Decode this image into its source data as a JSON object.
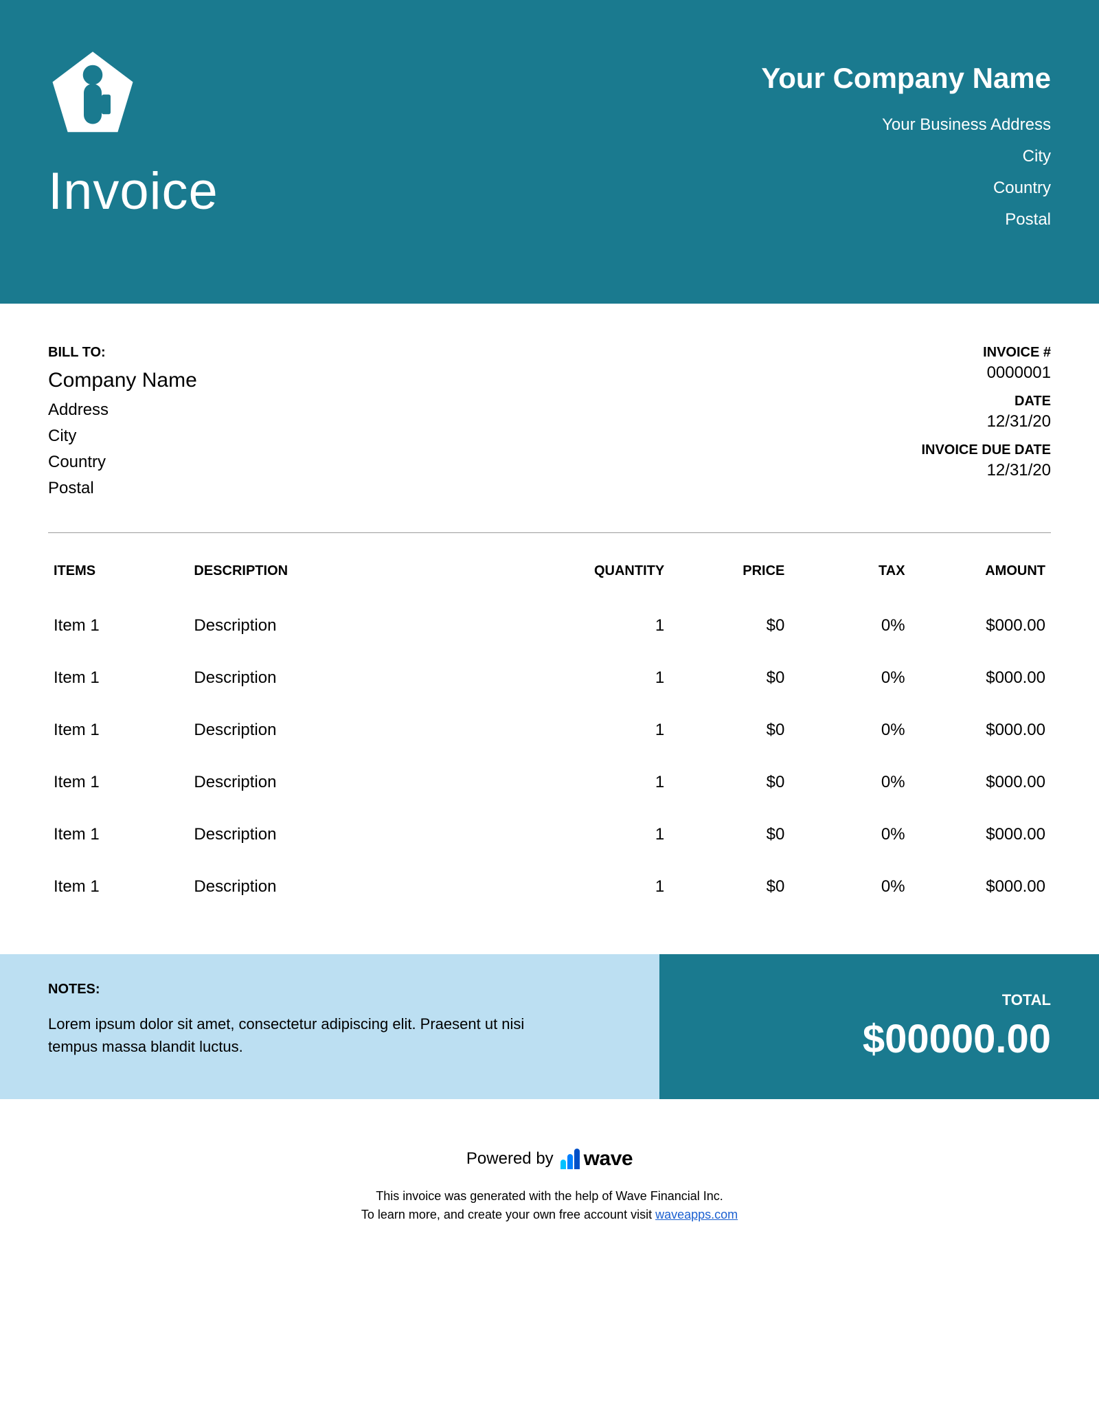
{
  "colors": {
    "brand": "#1a7a8f",
    "notes_bg": "#bcdff2",
    "rule": "#9a9a9a",
    "white": "#ffffff",
    "link": "#1a5fd0"
  },
  "header": {
    "title": "Invoice",
    "company_name": "Your Company Name",
    "address_lines": [
      "Your Business Address",
      "City",
      "Country",
      "Postal"
    ]
  },
  "bill_to": {
    "label": "BILL TO:",
    "company": "Company Name",
    "lines": [
      "Address",
      "City",
      "Country",
      "Postal"
    ]
  },
  "invoice_meta": {
    "number_label": "INVOICE #",
    "number": "0000001",
    "date_label": "DATE",
    "date": "12/31/20",
    "due_label": "INVOICE DUE DATE",
    "due": "12/31/20"
  },
  "table": {
    "columns": [
      "ITEMS",
      "DESCRIPTION",
      "QUANTITY",
      "PRICE",
      "TAX",
      "AMOUNT"
    ],
    "rows": [
      {
        "item": "Item 1",
        "desc": "Description",
        "qty": "1",
        "price": "$0",
        "tax": "0%",
        "amount": "$000.00"
      },
      {
        "item": "Item 1",
        "desc": "Description",
        "qty": "1",
        "price": "$0",
        "tax": "0%",
        "amount": "$000.00"
      },
      {
        "item": "Item 1",
        "desc": "Description",
        "qty": "1",
        "price": "$0",
        "tax": "0%",
        "amount": "$000.00"
      },
      {
        "item": "Item 1",
        "desc": "Description",
        "qty": "1",
        "price": "$0",
        "tax": "0%",
        "amount": "$000.00"
      },
      {
        "item": "Item 1",
        "desc": "Description",
        "qty": "1",
        "price": "$0",
        "tax": "0%",
        "amount": "$000.00"
      },
      {
        "item": "Item 1",
        "desc": "Description",
        "qty": "1",
        "price": "$0",
        "tax": "0%",
        "amount": "$000.00"
      }
    ]
  },
  "notes": {
    "label": "NOTES:",
    "text": "Lorem ipsum dolor sit amet, consectetur adipiscing elit. Praesent ut nisi tempus massa blandit luctus."
  },
  "total": {
    "label": "TOTAL",
    "amount": "$00000.00"
  },
  "footer": {
    "powered_prefix": "Powered by",
    "brand": "wave",
    "line1": "This invoice was generated with the help of Wave Financial Inc.",
    "line2_prefix": "To learn more, and create your own free account visit ",
    "link_text": "waveapps.com"
  }
}
